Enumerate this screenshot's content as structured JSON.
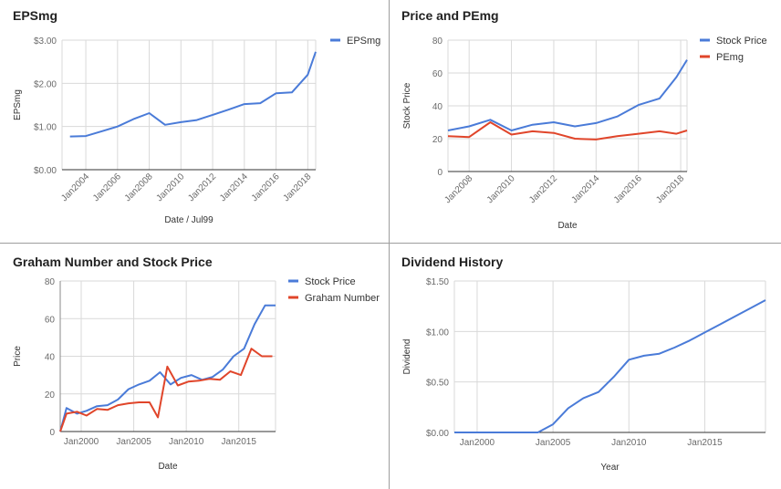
{
  "colors": {
    "blue": "#4a7bd8",
    "red": "#e0452a",
    "grid": "#d9d9d9",
    "axis": "#333333"
  },
  "chart_data": [
    {
      "type": "line",
      "title": "EPSmg",
      "xlabel": "Date / Jul99",
      "ylabel": "EPSmg",
      "xlim": [
        2002.5,
        2018.5
      ],
      "ylim": [
        0,
        3
      ],
      "x_ticks": [
        {
          "v": 2004,
          "label": "Jan2004"
        },
        {
          "v": 2006,
          "label": "Jan2006"
        },
        {
          "v": 2008,
          "label": "Jan2008"
        },
        {
          "v": 2010,
          "label": "Jan2010"
        },
        {
          "v": 2012,
          "label": "Jan2012"
        },
        {
          "v": 2014,
          "label": "Jan2014"
        },
        {
          "v": 2016,
          "label": "Jan2016"
        },
        {
          "v": 2018,
          "label": "Jan2018"
        }
      ],
      "y_ticks": [
        {
          "v": 0,
          "label": "$0.00"
        },
        {
          "v": 1,
          "label": "$1.00"
        },
        {
          "v": 2,
          "label": "$2.00"
        },
        {
          "v": 3,
          "label": "$3.00"
        }
      ],
      "legend": "right",
      "series": [
        {
          "name": "EPSmg",
          "color": "#4a7bd8",
          "x": [
            2003,
            2004,
            2005,
            2006,
            2007,
            2008,
            2009,
            2010,
            2011,
            2012,
            2013,
            2014,
            2015,
            2016,
            2017,
            2018,
            2018.5
          ],
          "values": [
            0.77,
            0.78,
            0.89,
            1.0,
            1.17,
            1.31,
            1.04,
            1.1,
            1.15,
            1.27,
            1.39,
            1.52,
            1.54,
            1.77,
            1.79,
            2.2,
            2.73
          ]
        }
      ]
    },
    {
      "type": "line",
      "title": "Price and PEmg",
      "xlabel": "Date",
      "ylabel": "Stock Price",
      "xlim": [
        2007,
        2018.3
      ],
      "ylim": [
        0,
        80
      ],
      "x_ticks": [
        {
          "v": 2008,
          "label": "Jan2008"
        },
        {
          "v": 2010,
          "label": "Jan2010"
        },
        {
          "v": 2012,
          "label": "Jan2012"
        },
        {
          "v": 2014,
          "label": "Jan2014"
        },
        {
          "v": 2016,
          "label": "Jan2016"
        },
        {
          "v": 2018,
          "label": "Jan2018"
        }
      ],
      "y_ticks": [
        {
          "v": 0,
          "label": "0"
        },
        {
          "v": 20,
          "label": "20"
        },
        {
          "v": 40,
          "label": "40"
        },
        {
          "v": 60,
          "label": "60"
        },
        {
          "v": 80,
          "label": "80"
        }
      ],
      "legend": "right",
      "series": [
        {
          "name": "Stock Price",
          "color": "#4a7bd8",
          "x": [
            2007,
            2008,
            2009,
            2010,
            2011,
            2012,
            2013,
            2014,
            2015,
            2016,
            2017,
            2017.8,
            2018.3
          ],
          "values": [
            25,
            27.5,
            31.5,
            25,
            28.5,
            30,
            27.5,
            29.5,
            33.5,
            40.5,
            44.5,
            57.5,
            68
          ]
        },
        {
          "name": "PEmg",
          "color": "#e0452a",
          "x": [
            2007,
            2008,
            2009,
            2010,
            2011,
            2012,
            2013,
            2014,
            2015,
            2016,
            2017,
            2017.8,
            2018.3
          ],
          "values": [
            21.5,
            21,
            30,
            22.5,
            24.5,
            23.5,
            20,
            19.5,
            21.5,
            23,
            24.5,
            23,
            25
          ]
        }
      ]
    },
    {
      "type": "line",
      "title": "Graham Number and Stock Price",
      "xlabel": "Date",
      "ylabel": "Price",
      "xlim": [
        1998,
        2018.5
      ],
      "ylim": [
        0,
        80
      ],
      "x_ticks": [
        {
          "v": 2000,
          "label": "Jan2000"
        },
        {
          "v": 2005,
          "label": "Jan2005"
        },
        {
          "v": 2010,
          "label": "Jan2010"
        },
        {
          "v": 2015,
          "label": "Jan2015"
        }
      ],
      "y_ticks": [
        {
          "v": 0,
          "label": "0"
        },
        {
          "v": 20,
          "label": "20"
        },
        {
          "v": 40,
          "label": "40"
        },
        {
          "v": 60,
          "label": "60"
        },
        {
          "v": 80,
          "label": "80"
        }
      ],
      "legend": "right",
      "series": [
        {
          "name": "Stock Price",
          "color": "#4a7bd8",
          "x": [
            1998,
            1998.6,
            1999.6,
            2000.5,
            2001.5,
            2002.5,
            2003.5,
            2004.5,
            2005.5,
            2006.5,
            2007.5,
            2008.5,
            2009.5,
            2010.5,
            2011.5,
            2012.5,
            2013.5,
            2014.5,
            2015.5,
            2016.5,
            2017.5,
            2018.5
          ],
          "values": [
            0,
            12.5,
            9.5,
            11,
            13.5,
            14,
            17,
            22.5,
            25,
            27,
            31.5,
            25,
            28.5,
            30,
            27.5,
            29,
            33,
            40,
            44,
            57,
            67,
            67
          ]
        },
        {
          "name": "Graham Number",
          "color": "#e0452a",
          "x": [
            1998,
            1998.6,
            1999.6,
            2000.5,
            2001.5,
            2002.5,
            2003.5,
            2004.5,
            2005.5,
            2006.5,
            2007.3,
            2008.2,
            2009.2,
            2010.2,
            2011.2,
            2012.2,
            2013.2,
            2014.2,
            2015.2,
            2016.2,
            2017.2,
            2018.2
          ],
          "values": [
            0,
            9.5,
            10.5,
            8.5,
            12,
            11.5,
            14,
            15,
            15.5,
            15.5,
            7.5,
            34.5,
            24.5,
            26.5,
            27,
            28,
            27.5,
            32,
            30,
            44,
            40,
            40
          ]
        }
      ]
    },
    {
      "type": "line",
      "title": "Dividend History",
      "xlabel": "Year",
      "ylabel": "Dividend",
      "xlim": [
        1998.5,
        2019
      ],
      "ylim": [
        0,
        1.5
      ],
      "x_ticks": [
        {
          "v": 2000,
          "label": "Jan2000"
        },
        {
          "v": 2005,
          "label": "Jan2005"
        },
        {
          "v": 2010,
          "label": "Jan2010"
        },
        {
          "v": 2015,
          "label": "Jan2015"
        }
      ],
      "y_ticks": [
        {
          "v": 0,
          "label": "$0.00"
        },
        {
          "v": 0.5,
          "label": "$0.50"
        },
        {
          "v": 1,
          "label": "$1.00"
        },
        {
          "v": 1.5,
          "label": "$1.50"
        }
      ],
      "legend": "none",
      "series": [
        {
          "name": "Dividend",
          "color": "#4a7bd8",
          "x": [
            1998.5,
            2004,
            2005,
            2006,
            2007,
            2008,
            2009,
            2010,
            2011,
            2012,
            2013,
            2014,
            2015,
            2016,
            2017,
            2018,
            2019
          ],
          "values": [
            0,
            0,
            0.08,
            0.24,
            0.34,
            0.4,
            0.55,
            0.72,
            0.76,
            0.78,
            0.84,
            0.91,
            0.99,
            1.07,
            1.15,
            1.23,
            1.31
          ]
        }
      ]
    }
  ]
}
